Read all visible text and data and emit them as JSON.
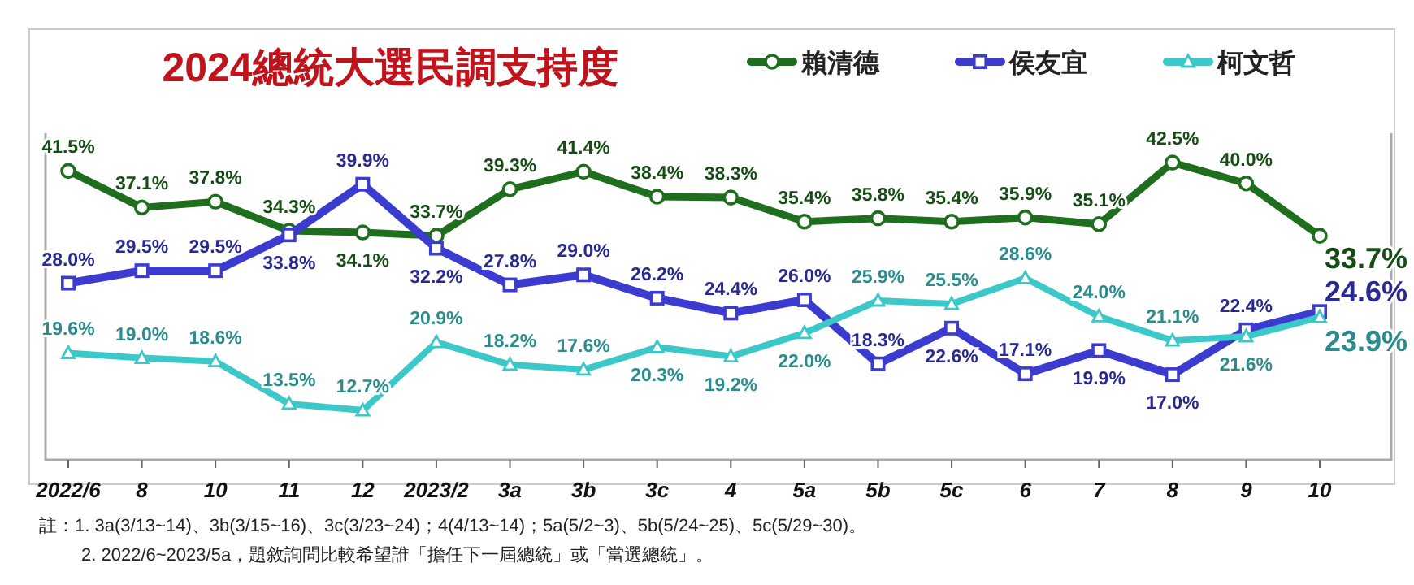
{
  "chart_data": {
    "type": "line",
    "title": "2024總統大選民調支持度",
    "categories": [
      "2022/6",
      "8",
      "10",
      "11",
      "12",
      "2023/2",
      "3a",
      "3b",
      "3c",
      "4",
      "5a",
      "5b",
      "5c",
      "6",
      "7",
      "8",
      "9",
      "10"
    ],
    "series": [
      {
        "name": "賴清德",
        "color": "#1e6e1e",
        "marker": "circle",
        "values": [
          41.5,
          37.1,
          37.8,
          34.3,
          34.1,
          33.7,
          39.3,
          41.4,
          38.4,
          38.3,
          35.4,
          35.8,
          35.4,
          35.9,
          35.1,
          42.5,
          40.0,
          33.7
        ],
        "value_labels": [
          "41.5%",
          "37.1%",
          "37.8%",
          "34.3%",
          "34.1%",
          "33.7%",
          "39.3%",
          "41.4%",
          "38.4%",
          "38.3%",
          "35.4%",
          "35.8%",
          "35.4%",
          "35.9%",
          "35.1%",
          "42.5%",
          "40.0%",
          "33.7%"
        ]
      },
      {
        "name": "侯友宜",
        "color": "#3b3bd0",
        "marker": "square",
        "values": [
          28.0,
          29.5,
          29.5,
          33.8,
          39.9,
          32.2,
          27.8,
          29.0,
          26.2,
          24.4,
          26.0,
          18.3,
          22.6,
          17.1,
          19.9,
          17.0,
          22.4,
          24.6
        ],
        "value_labels": [
          "28.0%",
          "29.5%",
          "29.5%",
          "33.8%",
          "39.9%",
          "32.2%",
          "27.8%",
          "29.0%",
          "26.2%",
          "24.4%",
          "26.0%",
          "18.3%",
          "22.6%",
          "17.1%",
          "19.9%",
          "17.0%",
          "22.4%",
          "24.6%"
        ]
      },
      {
        "name": "柯文哲",
        "color": "#3cc8c8",
        "marker": "triangle",
        "values": [
          19.6,
          19.0,
          18.6,
          13.5,
          12.7,
          20.9,
          18.2,
          17.6,
          20.3,
          19.2,
          22.0,
          25.9,
          25.5,
          28.6,
          24.0,
          21.1,
          21.6,
          23.9
        ],
        "value_labels": [
          "19.6%",
          "19.0%",
          "18.6%",
          "13.5%",
          "12.7%",
          "20.9%",
          "18.2%",
          "17.6%",
          "20.3%",
          "19.2%",
          "22.0%",
          "25.9%",
          "25.5%",
          "28.6%",
          "24.0%",
          "21.1%",
          "21.6%",
          "23.9%"
        ]
      }
    ],
    "legend": "top right",
    "grid": false,
    "annotations": [
      "註：1. 3a(3/13~14)、3b(3/15~16)、3c(3/23~24)；4(4/13~14)；5a(5/2~3)、5b(5/24~25)、5c(5/29~30)。",
      "2. 2022/6~2023/5a，題敘詢問比較希望誰「擔任下一屆總統」或「當選總統」。"
    ]
  }
}
